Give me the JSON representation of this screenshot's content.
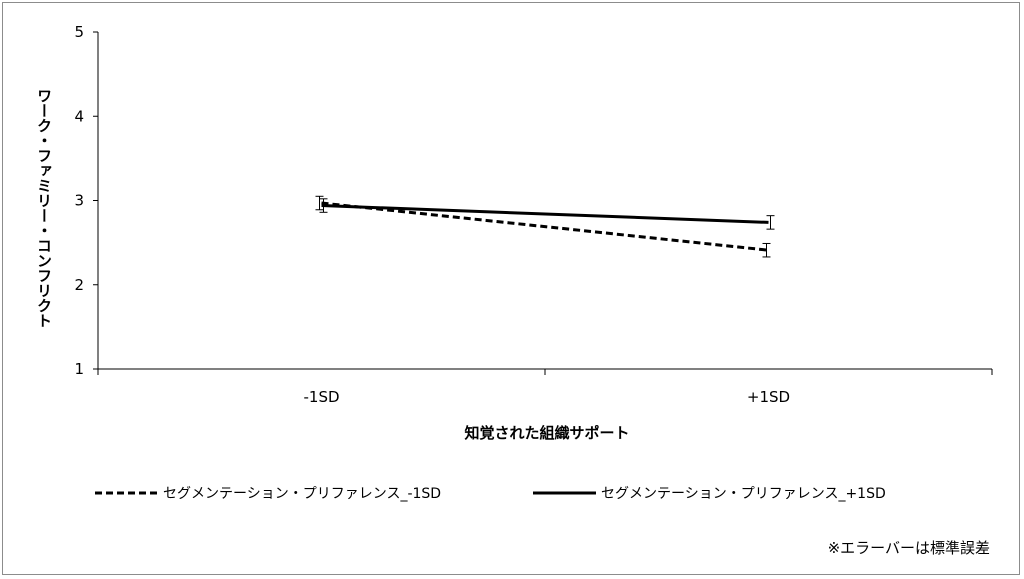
{
  "chart_data": {
    "type": "line",
    "categories": [
      "-1SD",
      "+1SD"
    ],
    "series": [
      {
        "name": "セグメンテーション・プリファレンス_-1SD",
        "values": [
          2.97,
          2.41
        ],
        "error": [
          0.08,
          0.08
        ],
        "line_style": "dashed",
        "color": "#000000"
      },
      {
        "name": "セグメンテーション・プリファレンス_+1SD",
        "values": [
          2.94,
          2.74
        ],
        "error": [
          0.08,
          0.08
        ],
        "line_style": "solid",
        "color": "#000000"
      }
    ],
    "xlabel": "知覚された組織サポート",
    "ylabel": "ワーク・ファミリー・コンフリクト",
    "ylim": [
      1,
      5
    ],
    "yticks": [
      "1",
      "2",
      "3",
      "4",
      "5"
    ],
    "grid": false,
    "legend_position": "bottom",
    "note": "※エラーバーは標準誤差"
  }
}
